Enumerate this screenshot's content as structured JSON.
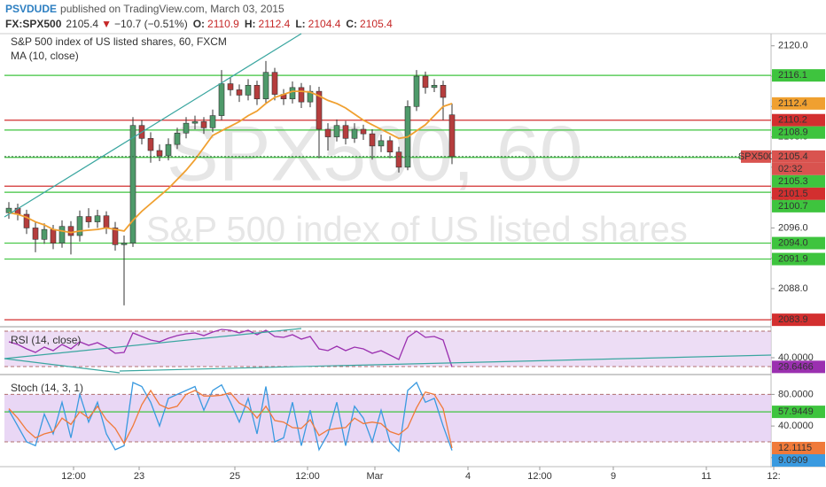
{
  "header": {
    "author": "PSVDUDE",
    "published": "published on TradingView.com, March 03, 2015",
    "symbol": "FX:SPX500",
    "last": "2105.4",
    "arrow": "▼",
    "change": "−10.7 (−0.51%)",
    "open_label": "O:",
    "open": "2110.9",
    "high_label": "H:",
    "high": "2112.4",
    "low_label": "L:",
    "low": "2104.4",
    "close_label": "C:",
    "close": "2105.4"
  },
  "chart_data": [
    {
      "type": "candlestick",
      "title": "S&P 500 index of US listed shares, 60, FXCM",
      "watermark": "SPX500, 60",
      "watermark_subtitle": "S&P 500 index of US listed shares",
      "up_color": "#4e9a6a",
      "down_color": "#b53d3d",
      "x": [
        0,
        1,
        2,
        3,
        4,
        5,
        6,
        7,
        8,
        9,
        10,
        11,
        12,
        13,
        14,
        15,
        16,
        17,
        18,
        19,
        20,
        21,
        22,
        23,
        24,
        25,
        26,
        27,
        28,
        29,
        30,
        31,
        32,
        33,
        34,
        35,
        36,
        37,
        38,
        39,
        40,
        41,
        42,
        43,
        44,
        45,
        46,
        47,
        48,
        49,
        50
      ],
      "open": [
        2098.0,
        2098.6,
        2097.8,
        2096.0,
        2094.5,
        2095.8,
        2094.0,
        2096.2,
        2095.0,
        2097.5,
        2096.8,
        2097.6,
        2096.0,
        2093.8,
        2094.0,
        2109.5,
        2107.8,
        2106.2,
        2105.5,
        2107.0,
        2108.5,
        2109.8,
        2110.0,
        2109.2,
        2110.8,
        2115.0,
        2114.2,
        2113.5,
        2114.8,
        2113.0,
        2116.5,
        2113.6,
        2113.0,
        2114.5,
        2112.6,
        2114.0,
        2109.0,
        2108.0,
        2109.5,
        2107.8,
        2109.0,
        2108.4,
        2106.8,
        2107.5,
        2106.0,
        2104.0,
        2112.0,
        2116.0,
        2114.5,
        2114.8,
        2110.9
      ],
      "high": [
        2099.4,
        2099.2,
        2098.4,
        2096.8,
        2096.6,
        2096.4,
        2097.0,
        2096.9,
        2098.3,
        2098.6,
        2098.4,
        2098.2,
        2096.8,
        2095.0,
        2110.6,
        2110.2,
        2108.6,
        2107.0,
        2107.8,
        2109.2,
        2110.6,
        2110.8,
        2110.6,
        2111.6,
        2116.8,
        2115.8,
        2114.9,
        2115.6,
        2115.4,
        2118.0,
        2117.1,
        2114.3,
        2115.3,
        2115.1,
        2114.8,
        2114.6,
        2109.8,
        2110.3,
        2110.1,
        2109.8,
        2109.6,
        2109.0,
        2108.3,
        2108.1,
        2106.7,
        2112.8,
        2116.8,
        2116.6,
        2115.6,
        2115.4,
        2112.4
      ],
      "low": [
        2097.2,
        2097.0,
        2095.2,
        2092.8,
        2093.9,
        2093.2,
        2093.4,
        2092.5,
        2094.2,
        2096.0,
        2096.0,
        2095.2,
        2093.0,
        2085.8,
        2093.5,
        2107.0,
        2104.6,
        2104.8,
        2104.9,
        2106.4,
        2107.8,
        2109.0,
        2108.4,
        2108.6,
        2110.2,
        2113.4,
        2112.6,
        2112.8,
        2112.2,
        2112.4,
        2112.8,
        2112.2,
        2112.4,
        2111.8,
        2111.9,
        2105.2,
        2106.2,
        2107.4,
        2107.0,
        2107.2,
        2107.6,
        2105.0,
        2106.0,
        2105.2,
        2103.3,
        2103.6,
        2111.4,
        2113.7,
        2113.9,
        2110.2,
        2104.4
      ],
      "close": [
        2098.6,
        2097.8,
        2096.0,
        2094.5,
        2095.8,
        2094.0,
        2096.2,
        2095.0,
        2097.5,
        2096.8,
        2097.6,
        2096.0,
        2093.8,
        2094.0,
        2109.5,
        2107.8,
        2106.2,
        2105.5,
        2107.0,
        2108.5,
        2109.8,
        2110.0,
        2109.2,
        2110.8,
        2115.0,
        2114.2,
        2113.5,
        2114.8,
        2113.0,
        2116.5,
        2113.6,
        2113.0,
        2114.5,
        2112.6,
        2114.0,
        2109.0,
        2108.0,
        2109.5,
        2107.8,
        2109.0,
        2108.4,
        2106.8,
        2107.5,
        2106.0,
        2104.0,
        2112.0,
        2116.0,
        2114.5,
        2114.8,
        2113.2,
        2105.4
      ],
      "series": [
        {
          "name": "MA (10, close)",
          "color": "#f0a030",
          "values": [
            2098.0,
            2097.8,
            2097.4,
            2096.8,
            2096.4,
            2095.8,
            2095.6,
            2095.4,
            2095.6,
            2095.7,
            2095.8,
            2096.0,
            2095.8,
            2095.6,
            2097.0,
            2098.2,
            2099.2,
            2100.2,
            2101.2,
            2102.4,
            2103.6,
            2105.0,
            2106.6,
            2108.2,
            2108.8,
            2109.4,
            2110.0,
            2110.8,
            2111.4,
            2112.4,
            2113.2,
            2113.6,
            2114.0,
            2114.0,
            2113.9,
            2113.4,
            2112.8,
            2112.4,
            2111.8,
            2111.0,
            2110.2,
            2109.6,
            2109.0,
            2108.4,
            2107.8,
            2108.0,
            2108.8,
            2109.6,
            2110.8,
            2112.0,
            2112.4
          ]
        }
      ],
      "last_price": 2105.4,
      "last_label": "SPX500",
      "last_color": "#d9534f",
      "countdown": "02:32",
      "levels": [
        {
          "value": 2116.1,
          "label": "2116.1",
          "color": "#3ec43e"
        },
        {
          "value": 2110.2,
          "label": "2110.2",
          "color": "#d32f2f"
        },
        {
          "value": 2108.9,
          "label": "2108.9",
          "color": "#3ec43e"
        },
        {
          "value": 2105.3,
          "label": "2105.3",
          "color": "#3ec43e"
        },
        {
          "value": 2101.5,
          "label": "2101.5",
          "color": "#d32f2f"
        },
        {
          "value": 2100.7,
          "label": "2100.7",
          "color": "#3ec43e"
        },
        {
          "value": 2094.0,
          "label": "2094.0",
          "color": "#3ec43e"
        },
        {
          "value": 2091.9,
          "label": "2091.9",
          "color": "#3ec43e"
        },
        {
          "value": 2083.9,
          "label": "2083.9",
          "color": "#d32f2f"
        }
      ],
      "xlim": [
        -0.5,
        86
      ],
      "ylim": [
        2083.1,
        2121.6
      ],
      "yticks": [
        {
          "value": 2084,
          "label": "2084.0"
        },
        {
          "value": 2088,
          "label": "2088.0"
        },
        {
          "value": 2092,
          "label": "2092.0"
        },
        {
          "value": 2096,
          "label": "2096.0"
        },
        {
          "value": 2100,
          "label": "2100.0"
        },
        {
          "value": 2104,
          "label": "2104.0"
        },
        {
          "value": 2108,
          "label": "2108.0"
        },
        {
          "value": 2112,
          "label": "2112.0"
        },
        {
          "value": 2116,
          "label": "2116.0"
        },
        {
          "value": 2120,
          "label": "2120.0"
        }
      ]
    },
    {
      "type": "line",
      "title": "RSI (14, close)",
      "series": [
        {
          "color": "#9b30b0",
          "values": [
            58,
            55,
            50,
            46,
            52,
            48,
            55,
            50,
            58,
            54,
            57,
            52,
            45,
            46,
            68,
            64,
            60,
            58,
            62,
            65,
            67,
            68,
            65,
            69,
            72,
            71,
            68,
            71,
            66,
            71,
            64,
            63,
            66,
            61,
            64,
            50,
            48,
            53,
            48,
            52,
            50,
            45,
            48,
            43,
            38,
            63,
            70,
            63,
            64,
            60,
            29.6466
          ]
        }
      ],
      "band": [
        30,
        70
      ],
      "band_color": "#e9d5f3",
      "ylim": [
        22,
        74
      ],
      "yticks": [
        {
          "value": 40,
          "label": "40.0000"
        }
      ]
    },
    {
      "type": "line",
      "title": "Stoch (14, 3, 1)",
      "series": [
        {
          "color": "#3a9ae0",
          "values": [
            60,
            40,
            20,
            15,
            55,
            30,
            70,
            25,
            80,
            45,
            70,
            30,
            10,
            15,
            95,
            90,
            70,
            40,
            75,
            80,
            85,
            90,
            60,
            85,
            92,
            70,
            45,
            75,
            30,
            90,
            20,
            25,
            70,
            15,
            60,
            10,
            30,
            70,
            15,
            65,
            50,
            20,
            60,
            20,
            8,
            85,
            95,
            70,
            75,
            40,
            9.0909
          ]
        },
        {
          "color": "#f07a3a",
          "values": [
            62,
            50,
            35,
            25,
            30,
            33,
            50,
            42,
            58,
            50,
            65,
            48,
            37,
            18,
            40,
            67,
            85,
            67,
            62,
            65,
            80,
            85,
            78,
            78,
            79,
            82,
            69,
            63,
            50,
            65,
            47,
            45,
            38,
            37,
            48,
            28,
            35,
            37,
            38,
            50,
            43,
            45,
            43,
            33,
            29,
            38,
            63,
            83,
            80,
            62,
            12.1115
          ]
        }
      ],
      "band": [
        20,
        80
      ],
      "band_color": "#e4cdf2",
      "levels": [
        {
          "value": 57.9449,
          "color": "#3ec43e"
        }
      ],
      "ylim": [
        -10.3,
        104
      ],
      "yticks": [
        {
          "value": 0,
          "label": "0.0000"
        },
        {
          "value": 40,
          "label": "40.0000"
        },
        {
          "value": 80,
          "label": "80.0000"
        }
      ],
      "xticks": [
        {
          "value": 7.3,
          "label": "12:00"
        },
        {
          "value": 14.7,
          "label": "23"
        },
        {
          "value": 25.5,
          "label": "25"
        },
        {
          "value": 33.7,
          "label": "12:00"
        },
        {
          "value": 41.3,
          "label": "Mar"
        },
        {
          "value": 51.8,
          "label": "4"
        },
        {
          "value": 59.9,
          "label": "12:00"
        },
        {
          "value": 68.2,
          "label": "9"
        },
        {
          "value": 78.7,
          "label": "11"
        },
        {
          "value": 86.3,
          "label": "12:"
        }
      ]
    }
  ]
}
